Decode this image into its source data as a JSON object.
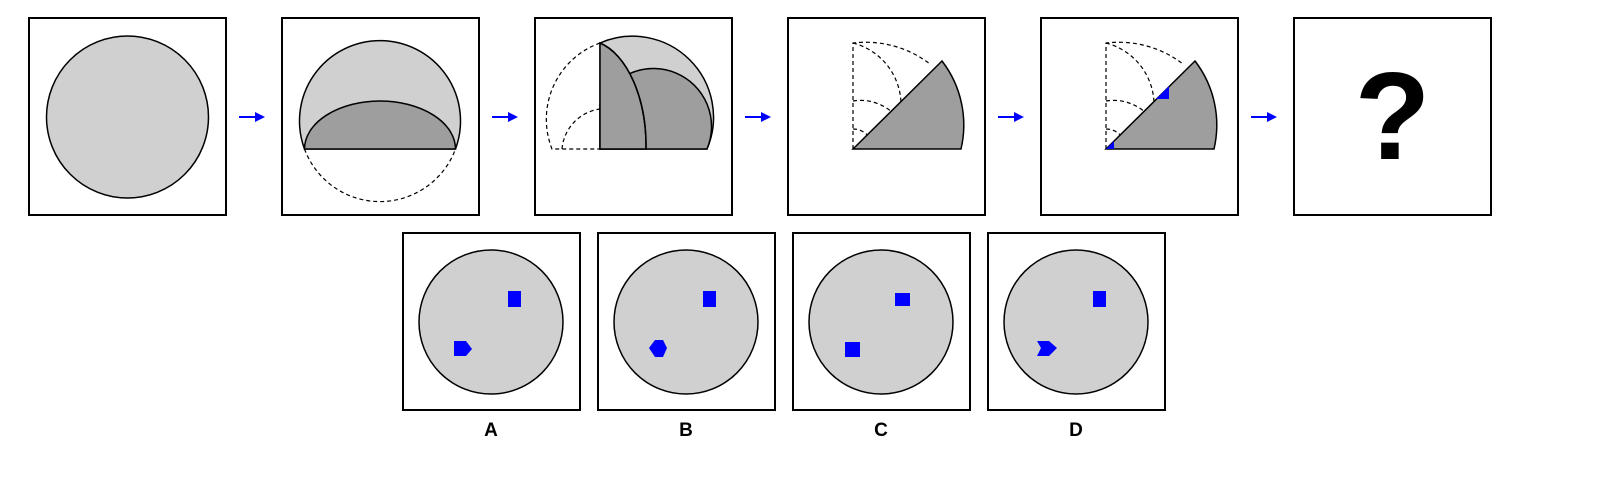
{
  "colors": {
    "light_gray": "#d0d0d0",
    "dark_gray": "#9e9e9e",
    "accent_blue": "#0000ff",
    "outline": "#000000"
  },
  "sequence": {
    "steps": [
      {
        "name": "full-circle"
      },
      {
        "name": "folded-in-half"
      },
      {
        "name": "folded-in-quarter"
      },
      {
        "name": "folded-in-eighth"
      },
      {
        "name": "eighth-with-cutouts"
      },
      {
        "name": "unknown-result"
      }
    ],
    "arrow_icon": "right-arrow-icon",
    "question_mark": "?"
  },
  "options": [
    {
      "label": "A"
    },
    {
      "label": "B"
    },
    {
      "label": "C"
    },
    {
      "label": "D"
    }
  ]
}
